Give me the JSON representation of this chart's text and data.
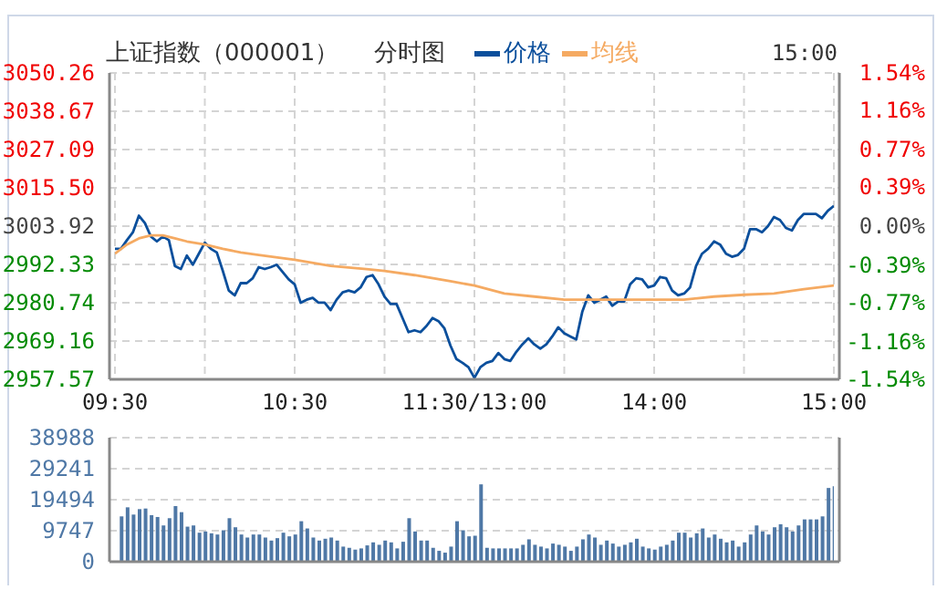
{
  "chart_data": [
    {
      "type": "line",
      "title": "上证指数（000001）",
      "subtitle": "分时图",
      "annotations": [
        "15:00"
      ],
      "legend": "top",
      "grid": true,
      "marker": "none",
      "categories": [
        "09:30",
        null,
        null,
        null,
        null,
        null,
        null,
        null,
        null,
        null,
        null,
        null,
        null,
        null,
        null,
        null,
        null,
        null,
        null,
        null,
        null,
        null,
        null,
        null,
        null,
        null,
        null,
        null,
        null,
        null,
        "10:30",
        null,
        null,
        null,
        null,
        null,
        null,
        null,
        null,
        null,
        null,
        null,
        null,
        null,
        null,
        null,
        null,
        null,
        null,
        null,
        null,
        null,
        null,
        null,
        null,
        null,
        null,
        null,
        null,
        null,
        "11:30/13:00",
        null,
        null,
        null,
        null,
        null,
        null,
        null,
        null,
        null,
        null,
        null,
        null,
        null,
        null,
        null,
        null,
        null,
        null,
        null,
        null,
        null,
        null,
        null,
        null,
        null,
        null,
        null,
        null,
        null,
        "14:00",
        null,
        null,
        null,
        null,
        null,
        null,
        null,
        null,
        null,
        null,
        null,
        null,
        null,
        null,
        null,
        null,
        null,
        null,
        null,
        null,
        null,
        null,
        null,
        null,
        null,
        null,
        null,
        null,
        null,
        "15:00"
      ],
      "ylim": [
        2957.57,
        3050.26
      ],
      "yticks": [
        2957.57,
        2969.16,
        2980.74,
        2992.33,
        3003.92,
        {
          "value": 3015.5,
          "label": "3015.50"
        },
        3027.09,
        3038.67,
        3050.26
      ],
      "y2lim": [
        -1.54,
        1.54
      ],
      "y2ticks": [
        {
          "value": -1.54,
          "label": "-1.54%"
        },
        {
          "value": -1.16,
          "label": "-1.16%"
        },
        {
          "value": -0.77,
          "label": "-0.77%"
        },
        {
          "value": -0.39,
          "label": "-0.39%"
        },
        {
          "value": 0,
          "label": "0.00%"
        },
        {
          "value": 0.39,
          "label": "0.39%"
        },
        {
          "value": 0.77,
          "label": "0.77%"
        },
        {
          "value": 1.16,
          "label": "1.16%"
        },
        {
          "value": 1.54,
          "label": "1.54%"
        }
      ],
      "series": [
        {
          "name": "价格",
          "color": "#0b4f9c",
          "values": [
            2997.06,
            2997.06,
            2999.66,
            3002.07,
            3007.07,
            3004.85,
            3000.77,
            2999.29,
            3000.77,
            2999.66,
            2991.87,
            2990.94,
            2995.02,
            2992.24,
            2995.58,
            2998.91,
            2997.06,
            2995.95,
            2990.39,
            2984.45,
            2982.97,
            2986.68,
            2986.68,
            2988.16,
            2991.5,
            2990.94,
            2991.5,
            2992.24,
            2990.02,
            2987.79,
            2986.31,
            2980.75,
            2981.67,
            2982.23,
            2980.75,
            2980.75,
            2978.52,
            2981.67,
            2983.9,
            2984.45,
            2983.9,
            2985.38,
            2988.53,
            2989.09,
            2986.31,
            2982.6,
            2980.37,
            2980.37,
            2976.11,
            2971.85,
            2972.4,
            2971.85,
            2973.7,
            2976.11,
            2975.18,
            2972.96,
            2967.77,
            2963.69,
            2962.58,
            2961.28,
            2958.0,
            2961.28,
            2962.58,
            2963.13,
            2965.54,
            2963.69,
            2963.13,
            2965.91,
            2968.14,
            2969.99,
            2968.14,
            2966.84,
            2968.14,
            2970.55,
            2973.33,
            2971.48,
            2970.55,
            2969.62,
            2977.96,
            2982.97,
            2980.75,
            2981.67,
            2982.6,
            2979.82,
            2981.12,
            2981.12,
            2986.31,
            2988.16,
            2987.79,
            2985.38,
            2985.94,
            2988.53,
            2988.16,
            2984.45,
            2982.97,
            2983.53,
            2985.38,
            2991.87,
            2995.58,
            2997.06,
            2999.29,
            2998.36,
            2995.58,
            2994.65,
            2995.21,
            2997.06,
            3002.99,
            3002.99,
            3002.07,
            3003.92,
            3006.7,
            3005.77,
            3003.36,
            3002.62,
            3005.77,
            3007.63,
            3007.63,
            3007.63,
            3006.33,
            3008.56,
            3010.04
          ]
        },
        {
          "name": "均线",
          "color": "#f5aa62",
          "values": [
            2995.58,
            null,
            2998.36,
            null,
            3000.21,
            null,
            3001.14,
            null,
            3001.14,
            null,
            3000.21,
            null,
            2999.29,
            null,
            null,
            2998.36,
            null,
            null,
            2997.06,
            null,
            null,
            2995.95,
            null,
            null,
            2995.21,
            null,
            null,
            null,
            null,
            null,
            2993.72,
            null,
            null,
            null,
            null,
            null,
            2991.87,
            null,
            null,
            null,
            null,
            null,
            2990.94,
            null,
            null,
            2990.39,
            null,
            null,
            null,
            null,
            2989.09,
            null,
            null,
            null,
            null,
            null,
            2987.23,
            null,
            null,
            null,
            2985.94,
            null,
            null,
            null,
            null,
            2983.53,
            null,
            null,
            null,
            null,
            2982.6,
            null,
            null,
            null,
            null,
            2981.67,
            null,
            null,
            null,
            null,
            2981.67,
            null,
            null,
            null,
            null,
            2981.67,
            null,
            null,
            null,
            null,
            2981.67,
            null,
            null,
            null,
            null,
            2981.67,
            null,
            null,
            null,
            null,
            2982.6,
            null,
            null,
            null,
            null,
            2983.16,
            null,
            null,
            null,
            null,
            2983.53,
            null,
            null,
            null,
            null,
            2984.82,
            null,
            null,
            null,
            null,
            2985.94
          ]
        }
      ]
    },
    {
      "type": "bar",
      "color": "#4f78a6",
      "grid": true,
      "tick_labels": "y",
      "categories": [
        null,
        null,
        null,
        null,
        null,
        null,
        null,
        null,
        null,
        null,
        null,
        null,
        null,
        null,
        null,
        null,
        null,
        null,
        null,
        null,
        null,
        null,
        null,
        null,
        null,
        null,
        null,
        null,
        null,
        null,
        null,
        null,
        null,
        null,
        null,
        null,
        null,
        null,
        null,
        null,
        null,
        null,
        null,
        null,
        null,
        null,
        null,
        null,
        null,
        null,
        null,
        null,
        null,
        null,
        null,
        null,
        null,
        null,
        null,
        null,
        null,
        null,
        null,
        null,
        null,
        null,
        null,
        null,
        null,
        null,
        null,
        null,
        null,
        null,
        null,
        null,
        null,
        null,
        null,
        null,
        null,
        null,
        null,
        null,
        null,
        null,
        null,
        null,
        null,
        null,
        null,
        null,
        null,
        null,
        null,
        null,
        null,
        null,
        null,
        null,
        null,
        null,
        null,
        null,
        null,
        null,
        null,
        null,
        null,
        null,
        null,
        null,
        null,
        null,
        null,
        null,
        null,
        null,
        null,
        null,
        null
      ],
      "ylim": [
        0,
        38988
      ],
      "yticks": [
        0,
        9747,
        19494,
        29241,
        38988
      ],
      "values": [
        null,
        14250,
        17100,
        14820,
        16530,
        16720,
        14630,
        14060,
        11400,
        13680,
        17480,
        15580,
        11020,
        11400,
        9120,
        9500,
        8930,
        8550,
        9880,
        13680,
        10830,
        8550,
        7600,
        8550,
        8550,
        7600,
        6650,
        7410,
        9120,
        7980,
        8550,
        12730,
        10450,
        7600,
        6650,
        7220,
        7600,
        6650,
        4750,
        4370,
        3800,
        4180,
        5130,
        6080,
        5320,
        6650,
        6080,
        4180,
        6270,
        13680,
        9500,
        6650,
        6650,
        4370,
        3420,
        2850,
        4750,
        12730,
        9880,
        7980,
        8170,
        24320,
        4370,
        4180,
        4180,
        4180,
        4180,
        4180,
        5320,
        7030,
        5320,
        4750,
        4180,
        5700,
        5320,
        4750,
        3420,
        4750,
        7030,
        8550,
        7600,
        5320,
        6650,
        5700,
        4750,
        5320,
        6080,
        7220,
        4750,
        4180,
        3800,
        4750,
        5320,
        6650,
        9120,
        9120,
        7600,
        8930,
        10450,
        7600,
        8550,
        7220,
        6080,
        6650,
        4750,
        6080,
        8550,
        11400,
        9500,
        8550,
        10830,
        11780,
        10830,
        9500,
        11400,
        13300,
        13300,
        13300,
        14250,
        23180,
        23750
      ]
    }
  ]
}
